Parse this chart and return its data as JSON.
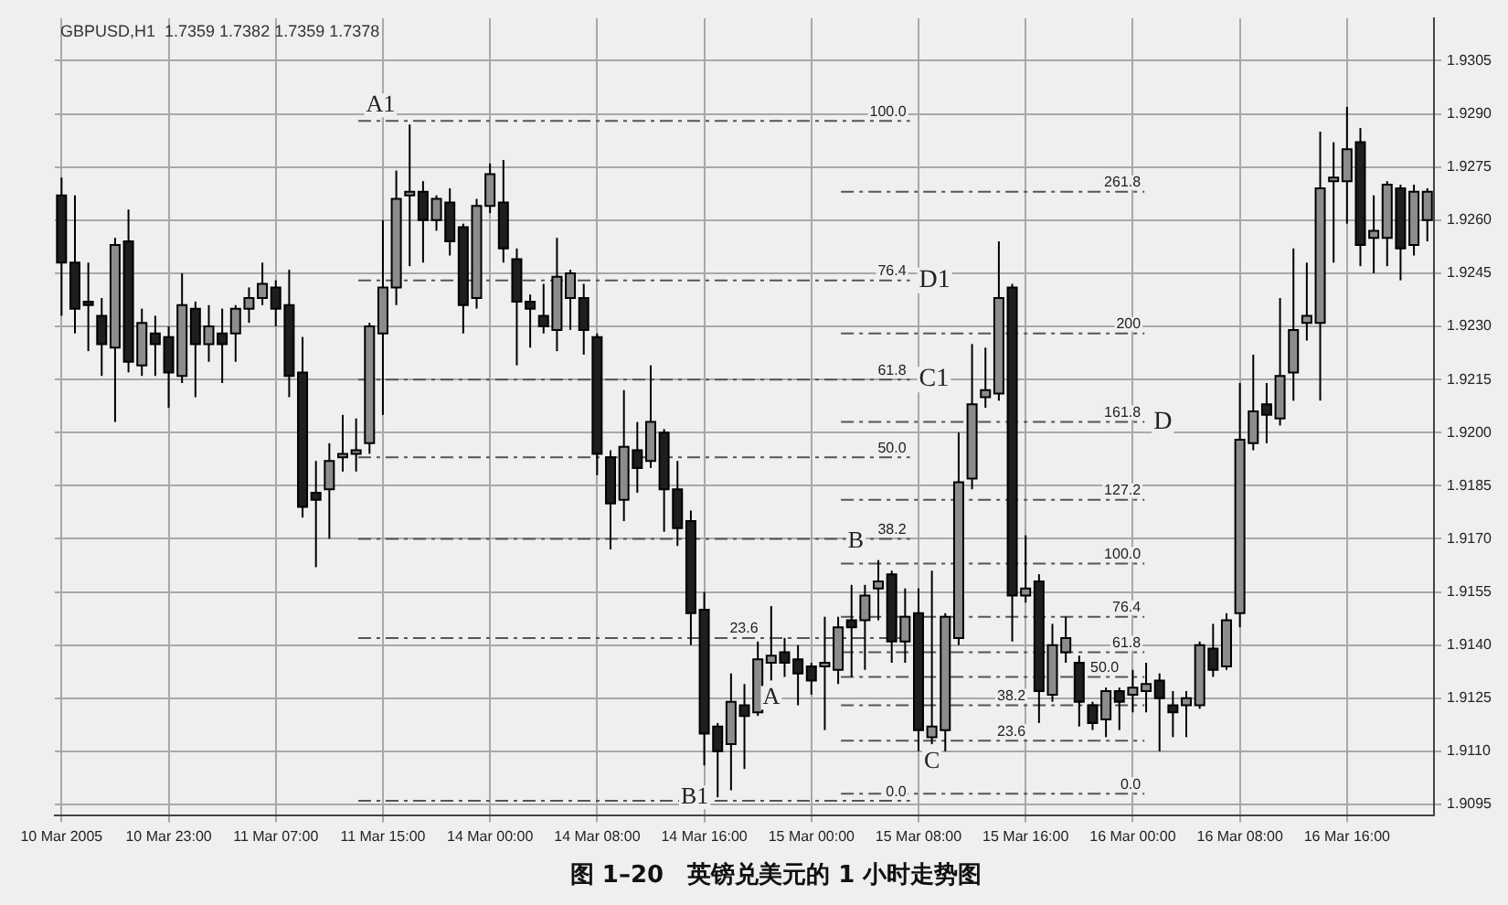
{
  "chart_data": {
    "type": "candlestick",
    "title": "图 1–20　英镑兑美元的 1 小时走势图",
    "subtitle": "GBPUSD,H1  1.7359 1.7382 1.7359 1.7378",
    "categories": [
      "10 Mar 2005",
      null,
      null,
      null,
      null,
      null,
      null,
      null,
      "10 Mar 23:00",
      null,
      null,
      null,
      null,
      null,
      null,
      null,
      "11 Mar 07:00",
      null,
      null,
      null,
      null,
      null,
      null,
      null,
      "11 Mar 15:00",
      null,
      null,
      null,
      null,
      null,
      null,
      null,
      "14 Mar 00:00",
      null,
      null,
      null,
      null,
      null,
      null,
      null,
      "14 Mar 08:00",
      null,
      null,
      null,
      null,
      null,
      null,
      null,
      "14 Mar 16:00",
      null,
      null,
      null,
      null,
      null,
      null,
      null,
      "15 Mar 00:00",
      null,
      null,
      null,
      null,
      null,
      null,
      null,
      "15 Mar 08:00",
      null,
      null,
      null,
      null,
      null,
      null,
      null,
      "15 Mar 16:00",
      null,
      null,
      null,
      null,
      null,
      null,
      null,
      "16 Mar 00:00",
      null,
      null,
      null,
      null,
      null,
      null,
      null,
      "16 Mar 08:00",
      null,
      null,
      null,
      null,
      null,
      null,
      null,
      "16 Mar 16:00",
      null,
      null,
      null,
      null,
      null,
      null
    ],
    "ohlc": [
      [
        1.9267,
        1.9272,
        1.9233,
        1.9248
      ],
      [
        1.9248,
        1.9267,
        1.9228,
        1.9235
      ],
      [
        1.9237,
        1.9248,
        1.9223,
        1.9236
      ],
      [
        1.9233,
        1.9238,
        1.9216,
        1.9225
      ],
      [
        1.9224,
        1.9255,
        1.9203,
        1.9253
      ],
      [
        1.9254,
        1.9263,
        1.9217,
        1.922
      ],
      [
        1.9219,
        1.9235,
        1.9216,
        1.9231
      ],
      [
        1.9228,
        1.9233,
        1.9216,
        1.9225
      ],
      [
        1.9227,
        1.923,
        1.9207,
        1.9217
      ],
      [
        1.9216,
        1.9245,
        1.9214,
        1.9236
      ],
      [
        1.9235,
        1.9237,
        1.921,
        1.9225
      ],
      [
        1.9225,
        1.9236,
        1.922,
        1.923
      ],
      [
        1.9228,
        1.9235,
        1.9214,
        1.9225
      ],
      [
        1.9228,
        1.9236,
        1.922,
        1.9235
      ],
      [
        1.9235,
        1.9241,
        1.9231,
        1.9238
      ],
      [
        1.9238,
        1.9248,
        1.9236,
        1.9242
      ],
      [
        1.9241,
        1.9243,
        1.923,
        1.9235
      ],
      [
        1.9236,
        1.9246,
        1.921,
        1.9216
      ],
      [
        1.9217,
        1.9227,
        1.9176,
        1.9179
      ],
      [
        1.9183,
        1.9192,
        1.9162,
        1.9181
      ],
      [
        1.9184,
        1.9197,
        1.917,
        1.9192
      ],
      [
        1.9193,
        1.9205,
        1.9189,
        1.9194
      ],
      [
        1.9194,
        1.9204,
        1.9189,
        1.9195
      ],
      [
        1.9197,
        1.9231,
        1.9194,
        1.923
      ],
      [
        1.9228,
        1.926,
        1.9205,
        1.9241
      ],
      [
        1.9241,
        1.9274,
        1.9236,
        1.9266
      ],
      [
        1.9267,
        1.9287,
        1.9247,
        1.9268
      ],
      [
        1.9268,
        1.9271,
        1.9248,
        1.926
      ],
      [
        1.926,
        1.9267,
        1.9257,
        1.9266
      ],
      [
        1.9265,
        1.9269,
        1.925,
        1.9254
      ],
      [
        1.9258,
        1.9259,
        1.9228,
        1.9236
      ],
      [
        1.9238,
        1.9266,
        1.9235,
        1.9264
      ],
      [
        1.9264,
        1.9276,
        1.9262,
        1.9273
      ],
      [
        1.9265,
        1.9277,
        1.9248,
        1.9252
      ],
      [
        1.9249,
        1.9252,
        1.9219,
        1.9237
      ],
      [
        1.9237,
        1.9239,
        1.9224,
        1.9235
      ],
      [
        1.9233,
        1.9242,
        1.9228,
        1.923
      ],
      [
        1.9229,
        1.9255,
        1.9223,
        1.9244
      ],
      [
        1.9238,
        1.9246,
        1.9229,
        1.9245
      ],
      [
        1.9238,
        1.9242,
        1.9222,
        1.9229
      ],
      [
        1.9227,
        1.9228,
        1.9188,
        1.9194
      ],
      [
        1.9193,
        1.9195,
        1.9167,
        1.918
      ],
      [
        1.9181,
        1.9212,
        1.9175,
        1.9196
      ],
      [
        1.9195,
        1.9203,
        1.9183,
        1.919
      ],
      [
        1.9192,
        1.9219,
        1.919,
        1.9203
      ],
      [
        1.92,
        1.9201,
        1.9172,
        1.9184
      ],
      [
        1.9184,
        1.9192,
        1.9168,
        1.9173
      ],
      [
        1.9175,
        1.9178,
        1.914,
        1.9149
      ],
      [
        1.915,
        1.9155,
        1.9106,
        1.9115
      ],
      [
        1.9117,
        1.9118,
        1.9097,
        1.911
      ],
      [
        1.9112,
        1.9132,
        1.9099,
        1.9124
      ],
      [
        1.9123,
        1.9129,
        1.9105,
        1.912
      ],
      [
        1.9121,
        1.9141,
        1.912,
        1.9136
      ],
      [
        1.9135,
        1.9151,
        1.913,
        1.9137
      ],
      [
        1.9138,
        1.9142,
        1.9131,
        1.9135
      ],
      [
        1.9136,
        1.914,
        1.9123,
        1.9132
      ],
      [
        1.9134,
        1.9135,
        1.9126,
        1.913
      ],
      [
        1.9134,
        1.9148,
        1.9116,
        1.9135
      ],
      [
        1.9133,
        1.9148,
        1.9129,
        1.9145
      ],
      [
        1.9147,
        1.9157,
        1.9131,
        1.9145
      ],
      [
        1.9147,
        1.9157,
        1.9133,
        1.9154
      ],
      [
        1.9156,
        1.9164,
        1.9147,
        1.9158
      ],
      [
        1.916,
        1.9161,
        1.9135,
        1.9141
      ],
      [
        1.9141,
        1.9156,
        1.9135,
        1.9148
      ],
      [
        1.9149,
        1.9156,
        1.911,
        1.9116
      ],
      [
        1.9114,
        1.9161,
        1.9112,
        1.9117
      ],
      [
        1.9116,
        1.9149,
        1.911,
        1.9148
      ],
      [
        1.9142,
        1.92,
        1.914,
        1.9186
      ],
      [
        1.9187,
        1.9225,
        1.9184,
        1.9208
      ],
      [
        1.921,
        1.9224,
        1.9207,
        1.9212
      ],
      [
        1.9211,
        1.9254,
        1.9209,
        1.9238
      ],
      [
        1.9241,
        1.9242,
        1.9141,
        1.9154
      ],
      [
        1.9154,
        1.9171,
        1.9152,
        1.9156
      ],
      [
        1.9158,
        1.916,
        1.9118,
        1.9127
      ],
      [
        1.9126,
        1.9146,
        1.9124,
        1.914
      ],
      [
        1.9138,
        1.9148,
        1.9135,
        1.9142
      ],
      [
        1.9135,
        1.9137,
        1.9117,
        1.9124
      ],
      [
        1.9123,
        1.9124,
        1.9116,
        1.9118
      ],
      [
        1.9119,
        1.9128,
        1.9114,
        1.9127
      ],
      [
        1.9127,
        1.9128,
        1.9116,
        1.9124
      ],
      [
        1.9126,
        1.9133,
        1.9121,
        1.9128
      ],
      [
        1.9127,
        1.9135,
        1.9121,
        1.9129
      ],
      [
        1.913,
        1.9132,
        1.911,
        1.9125
      ],
      [
        1.9123,
        1.9127,
        1.9114,
        1.9121
      ],
      [
        1.9123,
        1.9127,
        1.9114,
        1.9125
      ],
      [
        1.9123,
        1.9141,
        1.9122,
        1.914
      ],
      [
        1.9139,
        1.9146,
        1.9131,
        1.9133
      ],
      [
        1.9134,
        1.9149,
        1.9133,
        1.9147
      ],
      [
        1.9149,
        1.9214,
        1.9145,
        1.9198
      ],
      [
        1.9197,
        1.9222,
        1.9195,
        1.9206
      ],
      [
        1.9208,
        1.9214,
        1.9197,
        1.9205
      ],
      [
        1.9204,
        1.9238,
        1.9202,
        1.9216
      ],
      [
        1.9217,
        1.9252,
        1.9209,
        1.9229
      ],
      [
        1.9231,
        1.9248,
        1.9226,
        1.9233
      ],
      [
        1.9231,
        1.9285,
        1.9209,
        1.9269
      ],
      [
        1.9271,
        1.9282,
        1.9248,
        1.9272
      ],
      [
        1.9271,
        1.9292,
        1.9259,
        1.928
      ],
      [
        1.9282,
        1.9286,
        1.9247,
        1.9253
      ],
      [
        1.9255,
        1.9267,
        1.9245,
        1.9257
      ],
      [
        1.9255,
        1.9271,
        1.9247,
        1.927
      ],
      [
        1.9269,
        1.927,
        1.9243,
        1.9252
      ],
      [
        1.9253,
        1.927,
        1.925,
        1.9268
      ],
      [
        1.926,
        1.9269,
        1.9254,
        1.9268
      ]
    ],
    "colors": [
      "#1e1e1e",
      "#1e1e1e",
      "#1e1e1e",
      "#1e1e1e",
      "#8c8c8c",
      "#1e1e1e",
      "#8c8c8c",
      "#1e1e1e",
      "#1e1e1e",
      "#8c8c8c",
      "#1e1e1e",
      "#8c8c8c",
      "#1e1e1e",
      "#8c8c8c",
      "#8c8c8c",
      "#8c8c8c",
      "#1e1e1e",
      "#1e1e1e",
      "#1e1e1e",
      "#1e1e1e",
      "#8c8c8c",
      "#8c8c8c",
      "#8c8c8c",
      "#8c8c8c",
      "#8c8c8c",
      "#8c8c8c",
      "#8c8c8c",
      "#1e1e1e",
      "#8c8c8c",
      "#1e1e1e",
      "#1e1e1e",
      "#8c8c8c",
      "#8c8c8c",
      "#1e1e1e",
      "#1e1e1e",
      "#1e1e1e",
      "#1e1e1e",
      "#8c8c8c",
      "#8c8c8c",
      "#1e1e1e",
      "#1e1e1e",
      "#1e1e1e",
      "#8c8c8c",
      "#1e1e1e",
      "#8c8c8c",
      "#1e1e1e",
      "#1e1e1e",
      "#1e1e1e",
      "#1e1e1e",
      "#1e1e1e",
      "#8c8c8c",
      "#1e1e1e",
      "#8c8c8c",
      "#8c8c8c",
      "#1e1e1e",
      "#1e1e1e",
      "#1e1e1e",
      "#8c8c8c",
      "#8c8c8c",
      "#1e1e1e",
      "#8c8c8c",
      "#8c8c8c",
      "#1e1e1e",
      "#8c8c8c",
      "#1e1e1e",
      "#8c8c8c",
      "#8c8c8c",
      "#8c8c8c",
      "#8c8c8c",
      "#8c8c8c",
      "#8c8c8c",
      "#1e1e1e",
      "#8c8c8c",
      "#1e1e1e",
      "#8c8c8c",
      "#8c8c8c",
      "#1e1e1e",
      "#1e1e1e",
      "#8c8c8c",
      "#1e1e1e",
      "#8c8c8c",
      "#8c8c8c",
      "#1e1e1e",
      "#1e1e1e",
      "#8c8c8c",
      "#8c8c8c",
      "#1e1e1e",
      "#8c8c8c",
      "#8c8c8c",
      "#8c8c8c",
      "#1e1e1e",
      "#8c8c8c",
      "#8c8c8c",
      "#8c8c8c",
      "#8c8c8c",
      "#8c8c8c",
      "#8c8c8c",
      "#1e1e1e",
      "#8c8c8c",
      "#8c8c8c",
      "#1e1e1e",
      "#8c8c8c",
      "#8c8c8c"
    ],
    "ylim": [
      1.9092,
      1.9317
    ],
    "yticks": [
      1.9305,
      {
        "value": 1.929,
        "label": "1.9290"
      },
      1.9275,
      {
        "value": 1.926,
        "label": "1.9260"
      },
      1.9245,
      {
        "value": 1.923,
        "label": "1.9230"
      },
      1.9215,
      {
        "value": 1.92,
        "label": "1.9200"
      },
      1.9185,
      {
        "value": 1.917,
        "label": "1.9170"
      },
      1.9155,
      {
        "value": 1.914,
        "label": "1.9140"
      },
      1.9125,
      {
        "value": 1.911,
        "label": "1.9110"
      },
      1.9095
    ],
    "grid": true,
    "ref_lines": [
      {
        "axis": "y",
        "value": 1.9288,
        "color": "#555555",
        "line_style": "dashed"
      },
      {
        "axis": "y",
        "value": 1.9243,
        "color": "#555555",
        "line_style": "dashed"
      },
      {
        "axis": "y",
        "value": 1.9215,
        "color": "#555555",
        "line_style": "dashed"
      },
      {
        "axis": "y",
        "value": 1.9193,
        "color": "#555555",
        "line_style": "dashed"
      },
      {
        "axis": "y",
        "value": 1.917,
        "color": "#555555",
        "line_style": "dashed"
      },
      {
        "axis": "y",
        "value": 1.9142,
        "color": "#555555",
        "line_style": "dashed"
      },
      {
        "axis": "y",
        "value": 1.9096,
        "color": "#555555",
        "line_style": "dashed"
      },
      {
        "axis": "y",
        "value": 1.9268,
        "color": "#555555",
        "line_style": "dashed"
      },
      {
        "axis": "y",
        "value": 1.9228,
        "color": "#555555",
        "line_style": "dashed"
      },
      {
        "axis": "y",
        "value": 1.9203,
        "color": "#555555",
        "line_style": "dashed"
      },
      {
        "axis": "y",
        "value": 1.9181,
        "color": "#555555",
        "line_style": "dashed"
      },
      {
        "axis": "y",
        "value": 1.9163,
        "color": "#555555",
        "line_style": "dashed"
      },
      {
        "axis": "y",
        "value": 1.9148,
        "color": "#555555",
        "line_style": "dashed"
      },
      {
        "axis": "y",
        "value": 1.9138,
        "color": "#555555",
        "line_style": "dashed"
      },
      {
        "axis": "y",
        "value": 1.9131,
        "color": "#555555",
        "line_style": "dashed"
      },
      {
        "axis": "y",
        "value": 1.9123,
        "color": "#555555",
        "line_style": "dashed"
      },
      {
        "axis": "y",
        "value": 1.9113,
        "color": "#555555",
        "line_style": "dashed"
      },
      {
        "axis": "y",
        "value": 1.9098,
        "color": "#555555",
        "line_style": "dashed"
      }
    ],
    "annotations": [
      {
        "text": "100.0",
        "y": 1.9288
      },
      {
        "text": "76.4",
        "y": 1.9243
      },
      {
        "text": "61.8",
        "y": 1.9215
      },
      {
        "text": "50.0",
        "y": 1.9193
      },
      {
        "text": "38.2",
        "y": 1.917
      },
      {
        "text": "23.6",
        "y": 1.9142
      },
      {
        "text": "0.0",
        "y": 1.9096
      },
      {
        "text": "261.8",
        "y": 1.9268
      },
      {
        "text": "200",
        "y": 1.9228
      },
      {
        "text": "161.8",
        "y": 1.9203
      },
      {
        "text": "127.2",
        "y": 1.9181
      },
      {
        "text": "100.0",
        "y": 1.9163
      },
      {
        "text": "76.4",
        "y": 1.9148
      },
      {
        "text": "61.8",
        "y": 1.9138
      },
      {
        "text": "50.0",
        "y": 1.9131
      },
      {
        "text": "38.2",
        "y": 1.9123
      },
      {
        "text": "23.6",
        "y": 1.9113
      },
      {
        "text": "0.0",
        "y": 1.9098
      },
      {
        "text": "A1",
        "y": 1.9287
      },
      {
        "text": "B1",
        "y": 1.9097
      },
      {
        "text": "A",
        "y": 1.913
      },
      {
        "text": "B",
        "y": 1.9164
      },
      {
        "text": "C",
        "y": 1.9112
      },
      {
        "text": "C1",
        "y": 1.9215
      },
      {
        "text": "D",
        "y": 1.9203
      },
      {
        "text": "D1",
        "y": 1.9243
      }
    ]
  }
}
